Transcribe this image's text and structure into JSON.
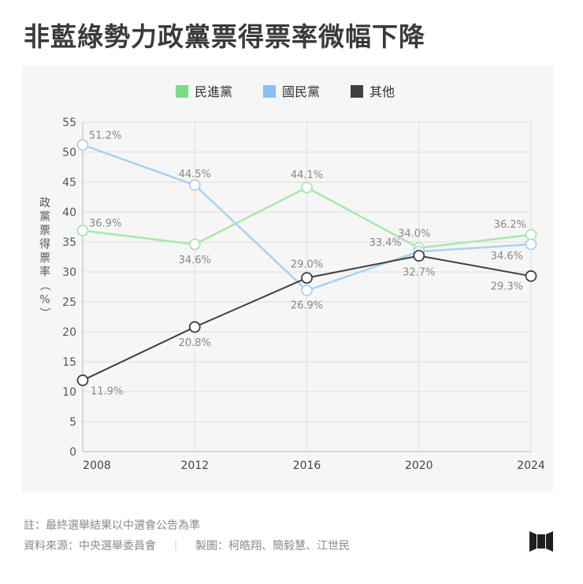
{
  "title": "非藍綠勢力政黨票得票率微幅下降",
  "chart_data": {
    "type": "line",
    "x": [
      "2008",
      "2012",
      "2016",
      "2020",
      "2024"
    ],
    "ylabel": "政黨票得票率（%）",
    "ylim": [
      0,
      55
    ],
    "yticks": [
      0,
      5,
      10,
      15,
      20,
      25,
      30,
      35,
      40,
      45,
      50,
      55
    ],
    "grid": true,
    "legend_position": "top-center",
    "series": [
      {
        "name": "民進黨",
        "color": "#7ddb86",
        "line_color": "#a6e9a9",
        "values": [
          36.9,
          34.6,
          44.1,
          34.0,
          36.2
        ],
        "labels": [
          "36.9%",
          "34.6%",
          "44.1%",
          "34.0%",
          "36.2%"
        ]
      },
      {
        "name": "國民黨",
        "color": "#86c0f5",
        "line_color": "#a9d2f2",
        "values": [
          51.2,
          44.5,
          26.9,
          33.4,
          34.6
        ],
        "labels": [
          "51.2%",
          "44.5%",
          "26.9%",
          "33.4%",
          "34.6%"
        ]
      },
      {
        "name": "其他",
        "color": "#404040",
        "line_color": "#404040",
        "values": [
          11.9,
          20.8,
          29.0,
          32.7,
          29.3
        ],
        "labels": [
          "11.9%",
          "20.8%",
          "29.0%",
          "32.7%",
          "29.3%"
        ]
      }
    ]
  },
  "notes": {
    "note": "註：最終選舉結果以中選會公告為準",
    "source": "資料來源：中央選舉委員會",
    "separator": "｜",
    "credit": "製圖：柯皓翔、簡毅慧、江世民"
  }
}
